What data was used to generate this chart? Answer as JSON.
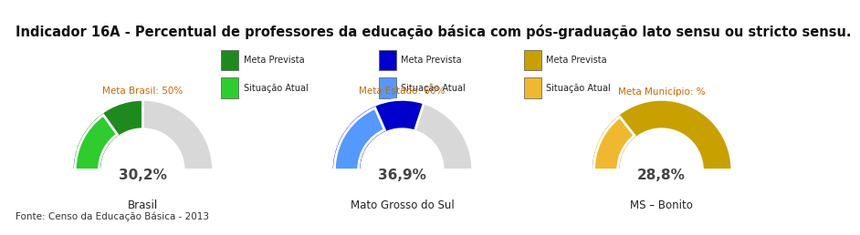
{
  "title": "Indicador 16A - Percentual de professores da educação básica com pós-graduação lato sensu ou stricto sensu.",
  "title_fontsize": 10.5,
  "footer": "Fonte: Censo da Educação Básica - 2013",
  "gauges": [
    {
      "label": "Brasil",
      "meta_label": "Meta Brasil: 50%",
      "meta_value": 50,
      "actual_value": 30.2,
      "actual_label": "30,2%",
      "color_meta": "#1e8a1e",
      "color_actual": "#2ecc2e",
      "color_bg": "#d8d8d8"
    },
    {
      "label": "Mato Grosso do Sul",
      "meta_label": "Meta Estado: 60%",
      "meta_value": 60,
      "actual_value": 36.9,
      "actual_label": "36,9%",
      "color_meta": "#0000cc",
      "color_actual": "#5599ff",
      "color_bg": "#d8d8d8"
    },
    {
      "label": "MS – Bonito",
      "meta_label": "Meta Município: %",
      "meta_value": 100,
      "actual_value": 28.8,
      "actual_label": "28,8%",
      "color_meta": "#c8a000",
      "color_actual": "#f0b830",
      "color_bg": "#d8d8d8"
    }
  ],
  "legend_items": [
    {
      "label": "Meta Prevista",
      "color": "#1e8a1e"
    },
    {
      "label": "Situação Atual",
      "color": "#2ecc2e"
    },
    {
      "label": "Meta Prevista",
      "color": "#0000cc"
    },
    {
      "label": "Situação Atual",
      "color": "#5599ff"
    },
    {
      "label": "Meta Prevista",
      "color": "#c8a000"
    },
    {
      "label": "Situação Atual",
      "color": "#f0b830"
    }
  ],
  "meta_label_color": "#cc6600",
  "value_label_color": "#444444",
  "gauge_label_color": "#222222",
  "bg_color": "#ffffff",
  "border_color": "#bbbbbb",
  "title_bg": "#f0f0f0",
  "footer_bg": "#f0f0f0"
}
